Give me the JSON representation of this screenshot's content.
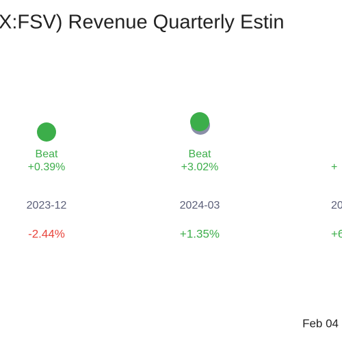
{
  "header": {
    "title": "X:FSV) Revenue Quarterly Estin"
  },
  "columns": [
    {
      "result": "Beat",
      "surprise": "+0.39%",
      "date": "2023-12",
      "change": "-2.44%"
    },
    {
      "result": "Beat",
      "surprise": "+3.02%",
      "date": "2024-03",
      "change": "+1.35%"
    },
    {
      "result": "",
      "surprise": "+",
      "date": "20",
      "change": "+6"
    }
  ],
  "footer": {
    "date": "Feb 04"
  }
}
